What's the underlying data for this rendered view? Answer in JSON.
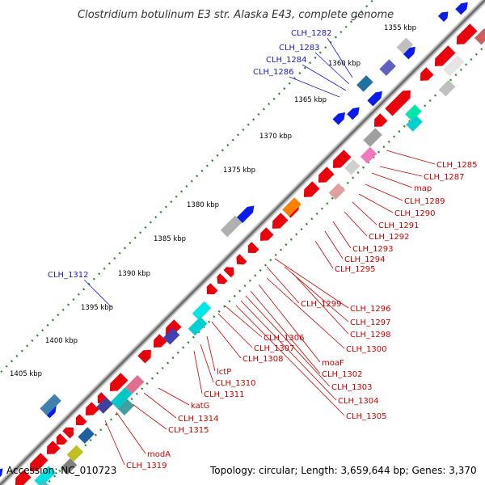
{
  "title": "Clostridium botulinum E3 str. Alaska E43, complete genome",
  "footer": {
    "accession": "Accession: NC_010723",
    "summary": "Topology: circular; Length: 3,659,644 bp; Genes: 3,370"
  },
  "kbp_ticks": [
    "1355 kbp",
    "1360 kbp",
    "1365 kbp",
    "1370 kbp",
    "1375 kbp",
    "1380 kbp",
    "1385 kbp",
    "1390 kbp",
    "1395 kbp",
    "1400 kbp",
    "1405 kbp"
  ],
  "labels_outer": [
    {
      "text": "CLH_1282",
      "color": "#1a1ad0"
    },
    {
      "text": "CLH_1283",
      "color": "#1a1ad0"
    },
    {
      "text": "CLH_1284",
      "color": "#1a1ad0"
    },
    {
      "text": "CLH_1286",
      "color": "#1a1ad0"
    },
    {
      "text": "CLH_1312",
      "color": "#1a1ad0"
    }
  ],
  "labels_inner": [
    "CLH_1285",
    "CLH_1287",
    "map",
    "CLH_1289",
    "CLH_1290",
    "CLH_1291",
    "CLH_1292",
    "CLH_1293",
    "CLH_1294",
    "CLH_1295",
    "CLH_1296",
    "CLH_1297",
    "CLH_1298",
    "CLH_1299",
    "CLH_1300",
    "moaF",
    "CLH_1302",
    "CLH_1303",
    "CLH_1304",
    "CLH_1305",
    "CLH_1306",
    "CLH_1307",
    "CLH_1308",
    "lctP",
    "CLH_1310",
    "CLH_1311",
    "katG",
    "CLH_1314",
    "CLH_1315",
    "modA",
    "CLH_1319"
  ],
  "colors": {
    "backbone": "#999999",
    "backbone_dark": "#555555",
    "forward_gene": "#e8000b",
    "reverse_gene": "#0a1de8",
    "inner_label": "#cc0000",
    "gc_dots": "#2a8a2a"
  }
}
